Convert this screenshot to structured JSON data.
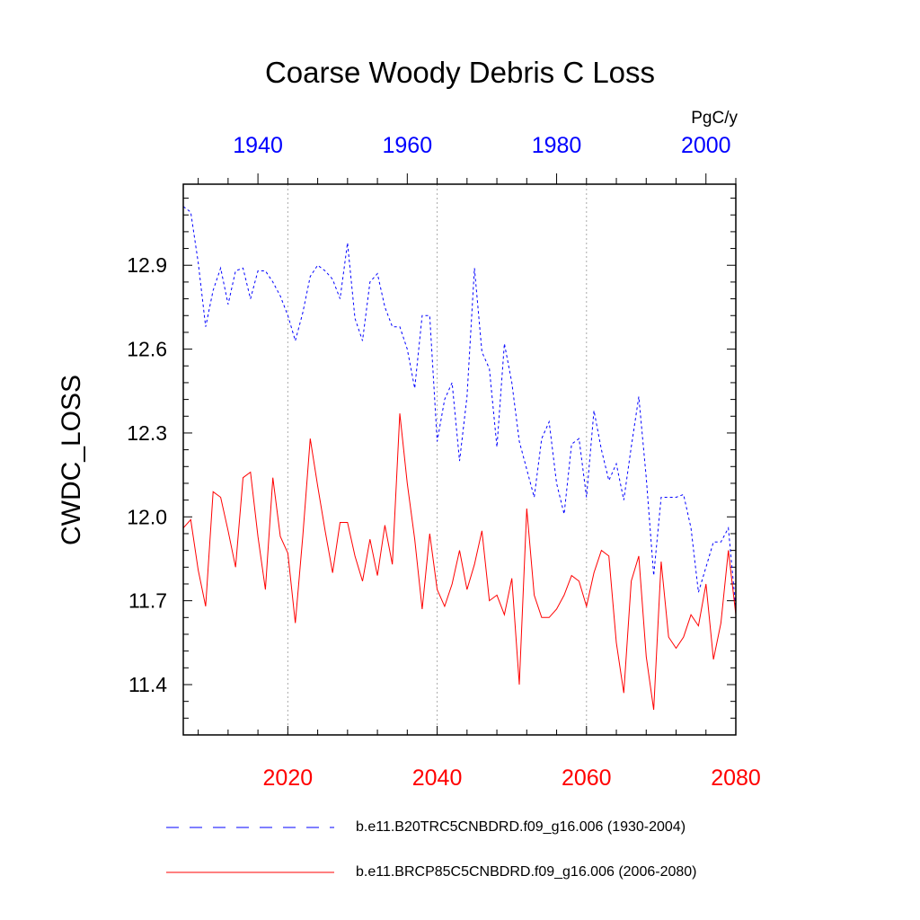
{
  "chart_data": {
    "type": "line",
    "title": "Coarse Woody Debris C Loss",
    "ylabel": "CWDC_LOSS",
    "units": "PgC/y",
    "ylim": [
      11.22,
      13.19
    ],
    "yticks": [
      11.4,
      11.7,
      12.0,
      12.3,
      12.6,
      12.9
    ],
    "ytick_labels": [
      "11.4",
      "11.7",
      "12.0",
      "12.3",
      "12.6",
      "12.9"
    ],
    "top_axis": {
      "xlim": [
        1930,
        2004
      ],
      "ticks": [
        1940,
        1960,
        1980,
        2000
      ],
      "tick_labels": [
        "1940",
        "1960",
        "1980",
        "2000"
      ],
      "color": "#0000ff"
    },
    "bottom_axis": {
      "xlim": [
        2006,
        2080
      ],
      "ticks": [
        2020,
        2040,
        2060,
        2080
      ],
      "tick_labels": [
        "2020",
        "2040",
        "2060",
        "2080"
      ],
      "color": "#ff0000"
    },
    "vertical_gridlines_at": [
      2020,
      2040,
      2060
    ],
    "series": [
      {
        "name": "b.e11.B20TRC5CNBDRD.f09_g16.006 (1930-2004)",
        "style": "dashed",
        "color": "#0000ff",
        "x_axis": "top",
        "x_start": 1930,
        "values": [
          13.11,
          13.09,
          12.91,
          12.68,
          12.81,
          12.89,
          12.76,
          12.88,
          12.89,
          12.78,
          12.88,
          12.88,
          12.84,
          12.79,
          12.72,
          12.63,
          12.73,
          12.86,
          12.9,
          12.88,
          12.85,
          12.78,
          12.98,
          12.71,
          12.63,
          12.84,
          12.87,
          12.75,
          12.68,
          12.68,
          12.6,
          12.46,
          12.72,
          12.72,
          12.27,
          12.42,
          12.48,
          12.2,
          12.43,
          12.89,
          12.59,
          12.53,
          12.25,
          12.62,
          12.48,
          12.27,
          12.17,
          12.07,
          12.28,
          12.34,
          12.12,
          12.01,
          12.26,
          12.28,
          12.07,
          12.38,
          12.24,
          12.13,
          12.19,
          12.06,
          12.25,
          12.43,
          12.14,
          11.79,
          12.07,
          12.07,
          12.07,
          12.08,
          11.96,
          11.73,
          11.82,
          11.91,
          11.91,
          11.96,
          11.67
        ]
      },
      {
        "name": "b.e11.BRCP85C5CNBDRD.f09_g16.006 (2006-2080)",
        "style": "solid",
        "color": "#ff0000",
        "x_axis": "bottom",
        "x_start": 2006,
        "values": [
          11.96,
          11.99,
          11.81,
          11.68,
          12.09,
          12.07,
          11.95,
          11.82,
          12.14,
          12.16,
          11.93,
          11.74,
          12.14,
          11.93,
          11.87,
          11.62,
          11.93,
          12.28,
          12.11,
          11.95,
          11.8,
          11.98,
          11.98,
          11.86,
          11.77,
          11.92,
          11.79,
          11.97,
          11.83,
          12.37,
          12.12,
          11.92,
          11.67,
          11.94,
          11.74,
          11.68,
          11.76,
          11.88,
          11.74,
          11.83,
          11.95,
          11.7,
          11.72,
          11.65,
          11.78,
          11.4,
          12.03,
          11.72,
          11.64,
          11.64,
          11.67,
          11.72,
          11.79,
          11.77,
          11.68,
          11.8,
          11.88,
          11.86,
          11.55,
          11.37,
          11.77,
          11.86,
          11.5,
          11.31,
          11.84,
          11.57,
          11.53,
          11.57,
          11.65,
          11.61,
          11.76,
          11.49,
          11.62,
          11.88,
          11.65
        ]
      }
    ]
  }
}
